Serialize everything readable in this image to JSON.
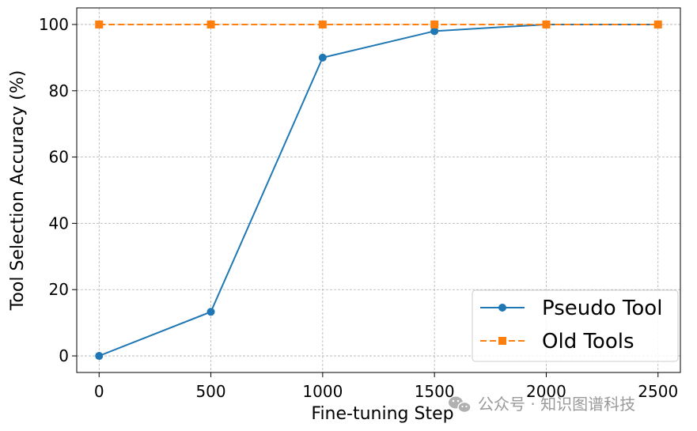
{
  "chart_data": {
    "type": "line",
    "xlabel": "Fine-tuning Step",
    "ylabel": "Tool Selection Accuracy (%)",
    "xlim": [
      -100,
      2600
    ],
    "ylim": [
      -5,
      105
    ],
    "xticks": [
      0,
      500,
      1000,
      1500,
      2000,
      2500
    ],
    "yticks": [
      0,
      20,
      40,
      60,
      80,
      100
    ],
    "grid": true,
    "legend_position": "bottom-right",
    "series": [
      {
        "name": "Pseudo Tool",
        "color": "#1f77b4",
        "marker": "circle",
        "linestyle": "solid",
        "x": [
          0,
          500,
          1000,
          1500,
          2000,
          2500
        ],
        "y": [
          0,
          13.3,
          90,
          98,
          100,
          100
        ]
      },
      {
        "name": "Old Tools",
        "color": "#ff7f0e",
        "marker": "square",
        "linestyle": "dashed",
        "x": [
          0,
          500,
          1000,
          1500,
          2000,
          2500
        ],
        "y": [
          100,
          100,
          100,
          100,
          100,
          100
        ]
      }
    ]
  },
  "watermark": {
    "text": "公众号 · 知识图谱科技",
    "icon": "wechat-icon"
  }
}
